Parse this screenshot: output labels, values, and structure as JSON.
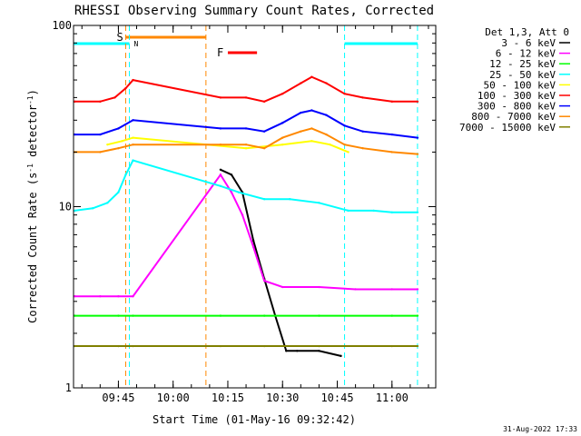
{
  "chart_data": {
    "type": "line",
    "title": "RHESSI Observing Summary Count Rates, Corrected",
    "xlabel": "Start Time (01-May-16 09:32:42)",
    "ylabel_main": "Corrected Count Rate (s",
    "ylabel_sup1": "-1",
    "ylabel_mid": " detector",
    "ylabel_sup2": "-1",
    "ylabel_end": ")",
    "yscale": "log",
    "ylim": [
      1,
      100
    ],
    "xlim": [
      "09:32:42",
      "11:12:00"
    ],
    "y_ticks": [
      "1",
      "10",
      "100"
    ],
    "x_ticks": [
      "09:45",
      "10:00",
      "10:15",
      "10:30",
      "10:45",
      "11:00"
    ],
    "grid": false,
    "legend_title": "Det 1,3, Att 0",
    "legend_position": "top-right",
    "series": [
      {
        "name": "3 - 6 keV",
        "color": "#000000",
        "points": [
          [
            "10:13",
            16.0
          ],
          [
            "10:16",
            15.0
          ],
          [
            "10:19",
            12.0
          ],
          [
            "10:22",
            6.5
          ],
          [
            "10:25",
            4.0
          ],
          [
            "10:28",
            2.5
          ],
          [
            "10:31",
            1.6
          ],
          [
            "10:34",
            1.6
          ],
          [
            "10:40",
            1.6
          ],
          [
            "10:46",
            1.5
          ]
        ]
      },
      {
        "name": "6 - 12 keV",
        "color": "#ff00ff",
        "points": [
          [
            "09:33",
            3.2
          ],
          [
            "09:40",
            3.2
          ],
          [
            "09:45",
            3.2
          ],
          [
            "09:49",
            3.2
          ],
          [
            "10:13",
            15.0
          ],
          [
            "10:16",
            12.0
          ],
          [
            "10:19",
            9.0
          ],
          [
            "10:22",
            6.0
          ],
          [
            "10:25",
            3.9
          ],
          [
            "10:30",
            3.6
          ],
          [
            "10:40",
            3.6
          ],
          [
            "10:50",
            3.5
          ],
          [
            "11:00",
            3.5
          ],
          [
            "11:07",
            3.5
          ]
        ]
      },
      {
        "name": "12 - 25 keV",
        "color": "#00ff00",
        "points": [
          [
            "09:33",
            2.5
          ],
          [
            "09:45",
            2.5
          ],
          [
            "09:49",
            2.5
          ],
          [
            "10:13",
            2.5
          ],
          [
            "10:25",
            2.5
          ],
          [
            "10:40",
            2.5
          ],
          [
            "11:00",
            2.5
          ],
          [
            "11:07",
            2.5
          ]
        ]
      },
      {
        "name": "25 - 50 keV",
        "color": "#00ffff",
        "points": [
          [
            "09:33",
            9.5
          ],
          [
            "09:38",
            9.8
          ],
          [
            "09:42",
            10.5
          ],
          [
            "09:45",
            12.0
          ],
          [
            "09:47",
            15.0
          ],
          [
            "09:49",
            18.0
          ],
          [
            "10:13",
            13.0
          ],
          [
            "10:18",
            12.0
          ],
          [
            "10:25",
            11.0
          ],
          [
            "10:32",
            11.0
          ],
          [
            "10:40",
            10.5
          ],
          [
            "10:48",
            9.5
          ],
          [
            "10:55",
            9.5
          ],
          [
            "11:00",
            9.3
          ],
          [
            "11:07",
            9.3
          ]
        ]
      },
      {
        "name": "50 - 100 keV",
        "color": "#ffff00",
        "points": [
          [
            "09:42",
            22.0
          ],
          [
            "09:46",
            23.0
          ],
          [
            "09:49",
            24.0
          ],
          [
            "10:20",
            21.0
          ],
          [
            "10:30",
            22.0
          ],
          [
            "10:38",
            23.0
          ],
          [
            "10:43",
            22.0
          ],
          [
            "10:48",
            20.0
          ]
        ]
      },
      {
        "name": "100 - 300 keV",
        "color": "#ff0000",
        "points": [
          [
            "09:33",
            38.0
          ],
          [
            "09:40",
            38.0
          ],
          [
            "09:44",
            40.0
          ],
          [
            "09:47",
            45.0
          ],
          [
            "09:49",
            50.0
          ],
          [
            "10:13",
            40.0
          ],
          [
            "10:20",
            40.0
          ],
          [
            "10:25",
            38.0
          ],
          [
            "10:30",
            42.0
          ],
          [
            "10:35",
            48.0
          ],
          [
            "10:38",
            52.0
          ],
          [
            "10:42",
            48.0
          ],
          [
            "10:47",
            42.0
          ],
          [
            "10:52",
            40.0
          ],
          [
            "11:00",
            38.0
          ],
          [
            "11:07",
            38.0
          ]
        ]
      },
      {
        "name": "300 - 800 keV",
        "color": "#0000ff",
        "points": [
          [
            "09:33",
            25.0
          ],
          [
            "09:40",
            25.0
          ],
          [
            "09:45",
            27.0
          ],
          [
            "09:49",
            30.0
          ],
          [
            "10:13",
            27.0
          ],
          [
            "10:20",
            27.0
          ],
          [
            "10:25",
            26.0
          ],
          [
            "10:30",
            29.0
          ],
          [
            "10:35",
            33.0
          ],
          [
            "10:38",
            34.0
          ],
          [
            "10:42",
            32.0
          ],
          [
            "10:47",
            28.0
          ],
          [
            "10:52",
            26.0
          ],
          [
            "11:00",
            25.0
          ],
          [
            "11:07",
            24.0
          ]
        ]
      },
      {
        "name": "800 - 7000 keV",
        "color": "#ff8800",
        "points": [
          [
            "09:33",
            20.0
          ],
          [
            "09:40",
            20.0
          ],
          [
            "09:45",
            21.0
          ],
          [
            "09:49",
            22.0
          ],
          [
            "10:13",
            22.0
          ],
          [
            "10:20",
            22.0
          ],
          [
            "10:25",
            21.0
          ],
          [
            "10:30",
            24.0
          ],
          [
            "10:35",
            26.0
          ],
          [
            "10:38",
            27.0
          ],
          [
            "10:42",
            25.0
          ],
          [
            "10:47",
            22.0
          ],
          [
            "10:52",
            21.0
          ],
          [
            "11:00",
            20.0
          ],
          [
            "11:07",
            19.5
          ]
        ]
      },
      {
        "name": "7000 - 15000 keV",
        "color": "#808000",
        "points": [
          [
            "09:33",
            1.7
          ],
          [
            "09:45",
            1.7
          ],
          [
            "09:49",
            1.7
          ],
          [
            "10:13",
            1.7
          ],
          [
            "10:25",
            1.7
          ],
          [
            "10:40",
            1.7
          ],
          [
            "11:00",
            1.7
          ],
          [
            "11:07",
            1.7
          ]
        ]
      }
    ],
    "annotations": {
      "night_bars": [
        [
          "09:32:42",
          "09:48:00"
        ],
        [
          "10:47:00",
          "11:07:00"
        ]
      ],
      "night_color": "#00ffff",
      "night_label": "N",
      "saa_bar": [
        "09:47:00",
        "10:09:00"
      ],
      "saa_color": "#ff8800",
      "saa_label": "S",
      "flare_bar": [
        "10:15:00",
        "10:23:00"
      ],
      "flare_color": "#ff0000",
      "flare_label": "F",
      "orange_vlines": [
        "09:47:00",
        "10:09:00"
      ],
      "cyan_vlines": [
        "09:48:00",
        "10:47:00",
        "11:07:00"
      ]
    }
  },
  "footer_date": "31-Aug-2022 17:33"
}
